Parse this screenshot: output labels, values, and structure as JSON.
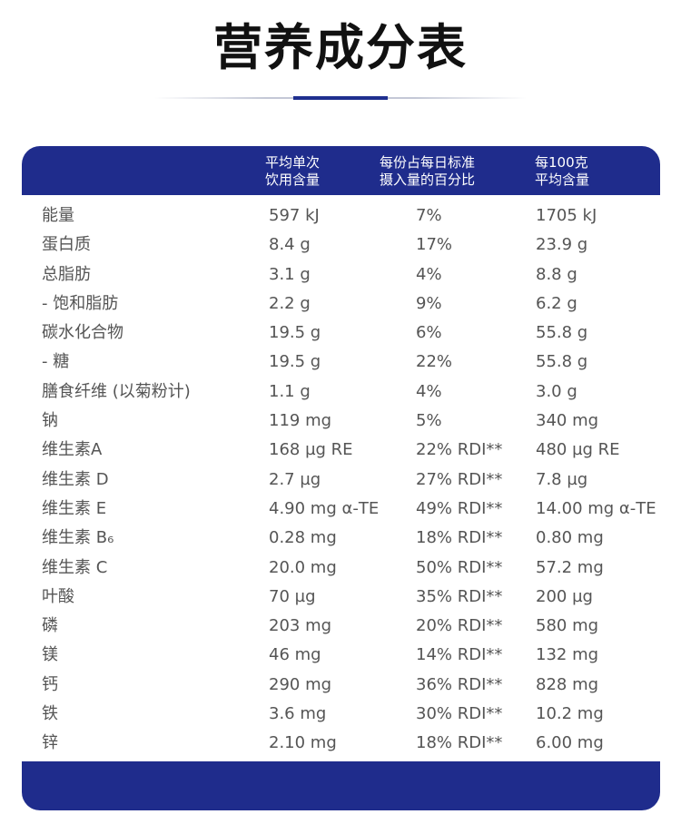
{
  "title": "营养成分表",
  "header": {
    "col1_line1": "平均单次",
    "col1_line2": "饮用含量",
    "col2_line1": "每份占每日标准",
    "col2_line2": "摄入量的百分比",
    "col3_line1": "每100克",
    "col3_line2": "平均含量"
  },
  "colors": {
    "band": "#1f2c8c",
    "text": "#555555",
    "title": "#111111"
  },
  "rows": [
    {
      "name": "能量",
      "per_serving": "597 kJ",
      "percent": "7%",
      "per_100g": "1705 kJ"
    },
    {
      "name": "蛋白质",
      "per_serving": "8.4 g",
      "percent": "17%",
      "per_100g": "23.9 g"
    },
    {
      "name": "总脂肪",
      "per_serving": "3.1 g",
      "percent": "4%",
      "per_100g": "8.8 g"
    },
    {
      "name": "- 饱和脂肪",
      "per_serving": "2.2 g",
      "percent": "9%",
      "per_100g": "6.2 g"
    },
    {
      "name": "碳水化合物",
      "per_serving": "19.5 g",
      "percent": "6%",
      "per_100g": "55.8 g"
    },
    {
      "name": "- 糖",
      "per_serving": "19.5 g",
      "percent": "22%",
      "per_100g": "55.8 g"
    },
    {
      "name": "膳食纤维 (以菊粉计)",
      "per_serving": "1.1 g",
      "percent": "4%",
      "per_100g": "3.0 g"
    },
    {
      "name": "钠",
      "per_serving": "119 mg",
      "percent": "5%",
      "per_100g": "340 mg"
    },
    {
      "name": "维生素A",
      "per_serving": "168 µg RE",
      "percent": "22% RDI**",
      "per_100g": "480 µg RE"
    },
    {
      "name": "维生素 D",
      "per_serving": "2.7 µg",
      "percent": "27% RDI**",
      "per_100g": "7.8 µg"
    },
    {
      "name": "维生素 E",
      "per_serving": "4.90 mg α-TE",
      "percent": "49% RDI**",
      "per_100g": "14.00 mg α-TE"
    },
    {
      "name": "维生素 B₆",
      "per_serving": "0.28 mg",
      "percent": "18% RDI**",
      "per_100g": "0.80 mg"
    },
    {
      "name": "维生素 C",
      "per_serving": "20.0 mg",
      "percent": "50% RDI**",
      "per_100g": "57.2 mg"
    },
    {
      "name": "叶酸",
      "per_serving": "70 µg",
      "percent": "35% RDI**",
      "per_100g": "200 µg"
    },
    {
      "name": "磷",
      "per_serving": "203 mg",
      "percent": "20% RDI**",
      "per_100g": "580 mg"
    },
    {
      "name": "镁",
      "per_serving": "46 mg",
      "percent": "14% RDI**",
      "per_100g": "132 mg"
    },
    {
      "name": "钙",
      "per_serving": "290 mg",
      "percent": "36% RDI**",
      "per_100g": "828 mg"
    },
    {
      "name": "铁",
      "per_serving": "3.6 mg",
      "percent": "30% RDI**",
      "per_100g": "10.2 mg"
    },
    {
      "name": "锌",
      "per_serving": "2.10 mg",
      "percent": "18% RDI**",
      "per_100g": "6.00 mg"
    }
  ]
}
